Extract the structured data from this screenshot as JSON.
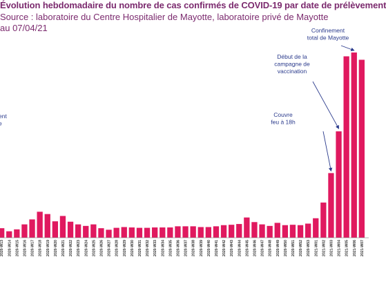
{
  "header": {
    "title": "Évolution hebdomadaire du nombre de cas confirmés de COVID-19 par date de prélèvement",
    "subtitle": "Source : laboratoire du Centre Hospitalier de Mayotte, laboratoire privé de Mayotte",
    "date": "au 07/04/21"
  },
  "colors": {
    "bar": "#e0195f",
    "text": "#7b2a6e",
    "annotation": "#2a3a8c"
  },
  "chart_data": {
    "type": "bar",
    "categories": [
      "2020-W13",
      "2020-W14",
      "2020-W15",
      "2020-W16",
      "2020-W17",
      "2020-W18",
      "2020-W19",
      "2020-W20",
      "2020-W21",
      "2020-W22",
      "2020-W23",
      "2020-W24",
      "2020-W25",
      "2020-W26",
      "2020-W27",
      "2020-W28",
      "2020-W29",
      "2020-W30",
      "2020-W31",
      "2020-W32",
      "2020-W33",
      "2020-W34",
      "2020-W35",
      "2020-W36",
      "2020-W37",
      "2020-W38",
      "2020-W39",
      "2020-W40",
      "2020-W41",
      "2020-W42",
      "2020-W43",
      "2020-W44",
      "2020-W45",
      "2020-W46",
      "2020-W47",
      "2020-W48",
      "2020-W49",
      "2020-W50",
      "2020-W51",
      "2020-W52",
      "2020-W53",
      "2021-W01",
      "2021-W02",
      "2021-W03",
      "2021-W04",
      "2021-W05",
      "2021-W06",
      "2021-W07"
    ],
    "values": [
      25,
      17,
      22,
      35,
      48,
      68,
      62,
      43,
      57,
      42,
      35,
      31,
      35,
      25,
      21,
      26,
      28,
      27,
      26,
      26,
      27,
      27,
      27,
      30,
      30,
      30,
      28,
      28,
      30,
      33,
      34,
      36,
      53,
      41,
      35,
      31,
      39,
      33,
      34,
      33,
      37,
      51,
      92,
      169,
      278,
      474,
      484,
      465
    ],
    "ylim": [
      0,
      520
    ],
    "annotations": [
      {
        "text": [
          "Confinement",
          "total de Mayotte"
        ],
        "target": "2021-W06"
      },
      {
        "text": [
          "Début de la",
          "campagne de",
          "vaccination"
        ],
        "target": "2021-W04"
      },
      {
        "text": [
          "Couvre",
          "feu à 18h"
        ],
        "target": "2021-W03"
      },
      {
        "text": [
          "ent",
          "e"
        ]
      }
    ]
  }
}
